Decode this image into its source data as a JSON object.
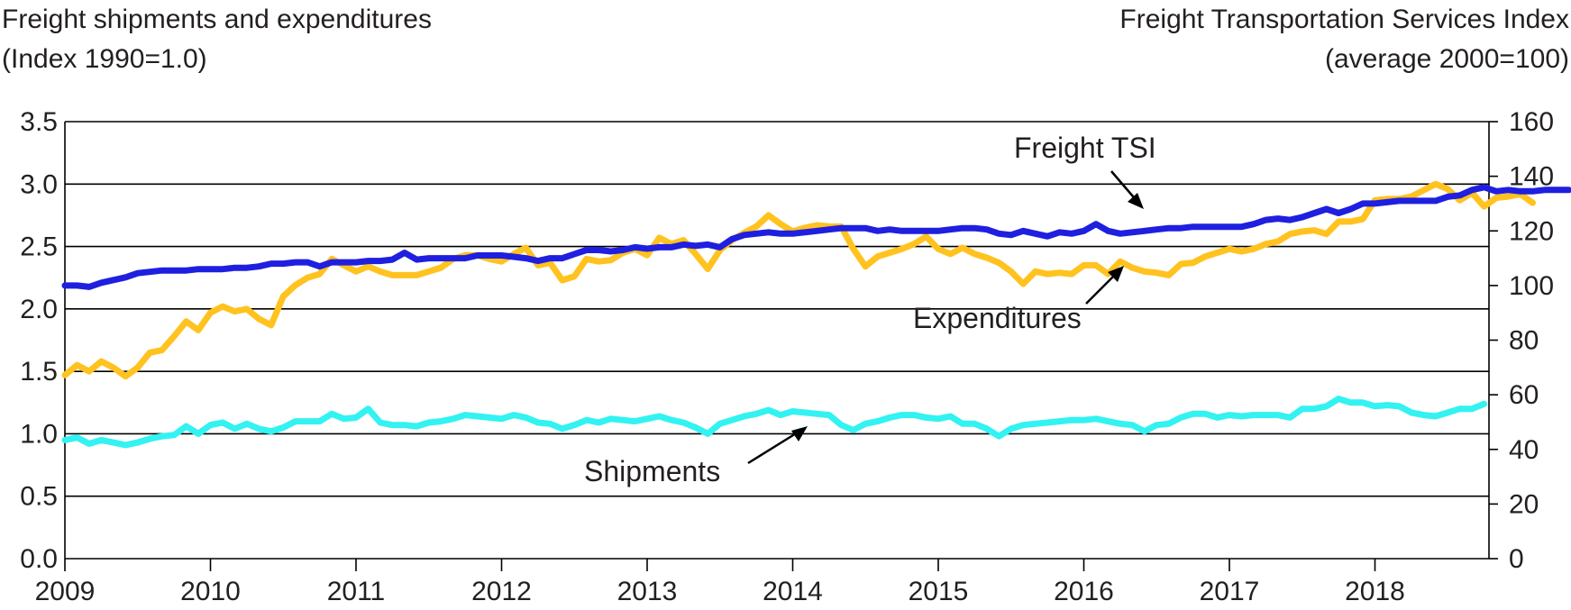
{
  "chart_data": {
    "type": "line",
    "left_axis_title": [
      "Freight shipments and expenditures",
      "(Index 1990=1.0)"
    ],
    "right_axis_title": [
      "Freight Transportation Services Index",
      "(average 2000=100)"
    ],
    "x_years": [
      "2009",
      "2010",
      "2011",
      "2012",
      "2013",
      "2014",
      "2015",
      "2016",
      "2017",
      "2018"
    ],
    "x_range": [
      2009.0,
      2018.79
    ],
    "left_ylim": [
      0,
      3.5
    ],
    "left_ticks": [
      "0.0",
      "0.5",
      "1.0",
      "1.5",
      "2.0",
      "2.5",
      "3.0",
      "3.5"
    ],
    "right_ylim": [
      0,
      160
    ],
    "right_ticks": [
      "0",
      "20",
      "40",
      "60",
      "80",
      "100",
      "120",
      "140",
      "160"
    ],
    "grid": true,
    "annotations": {
      "tsi": "Freight TSI",
      "expenditures": "Expenditures",
      "shipments": "Shipments"
    },
    "colors": {
      "tsi": "#1f1fe0",
      "expenditures": "#ffc21f",
      "shipments": "#33f2f2",
      "grid": "#000000"
    },
    "series": [
      {
        "name": "Freight TSI",
        "axis": "right",
        "color_key": "tsi",
        "start": 2009.0,
        "step": 0.0833333,
        "values": [
          100,
          100,
          99.5,
          101,
          102,
          103,
          104.5,
          105,
          105.5,
          105.5,
          105.5,
          106,
          106,
          106,
          106.5,
          106.5,
          107,
          108,
          108,
          108.5,
          108.5,
          107,
          108.5,
          108.5,
          108.5,
          109,
          109,
          109.5,
          112,
          109.5,
          110,
          110,
          110,
          110,
          111,
          111,
          111,
          110.5,
          110,
          109,
          110,
          110,
          111.5,
          113,
          113,
          112.5,
          113,
          114,
          113.5,
          114,
          114,
          115,
          114.5,
          115,
          114,
          117,
          118.5,
          119,
          119.5,
          119,
          119,
          119.5,
          120,
          120.5,
          121,
          121,
          121,
          120,
          120.5,
          120,
          120,
          120,
          120,
          120.5,
          121,
          121,
          120.5,
          119,
          118.5,
          120,
          119,
          118,
          119.5,
          119,
          120,
          122.5,
          120,
          119,
          119.5,
          120,
          120.5,
          121,
          121,
          121.5,
          121.5,
          121.5,
          121.5,
          121.5,
          122.5,
          124,
          124.5,
          124,
          125,
          126.5,
          128,
          126.5,
          128,
          130,
          130,
          130.5,
          131,
          131,
          131,
          131,
          132.5,
          133,
          135,
          136,
          134.5,
          135,
          134.5,
          134.5,
          135,
          135,
          135
        ]
      },
      {
        "name": "Expenditures",
        "axis": "left",
        "color_key": "expenditures",
        "start": 2009.0,
        "step": 0.0833333,
        "values": [
          1.47,
          1.55,
          1.5,
          1.58,
          1.53,
          1.46,
          1.53,
          1.65,
          1.67,
          1.78,
          1.9,
          1.83,
          1.97,
          2.02,
          1.98,
          2.0,
          1.92,
          1.87,
          2.1,
          2.19,
          2.25,
          2.28,
          2.4,
          2.35,
          2.3,
          2.34,
          2.3,
          2.27,
          2.27,
          2.27,
          2.3,
          2.33,
          2.4,
          2.43,
          2.43,
          2.4,
          2.38,
          2.44,
          2.49,
          2.35,
          2.37,
          2.23,
          2.26,
          2.4,
          2.38,
          2.39,
          2.45,
          2.48,
          2.43,
          2.57,
          2.52,
          2.55,
          2.44,
          2.32,
          2.47,
          2.55,
          2.61,
          2.66,
          2.75,
          2.68,
          2.62,
          2.65,
          2.67,
          2.66,
          2.66,
          2.48,
          2.34,
          2.42,
          2.45,
          2.48,
          2.52,
          2.58,
          2.48,
          2.44,
          2.49,
          2.44,
          2.41,
          2.37,
          2.3,
          2.2,
          2.3,
          2.28,
          2.29,
          2.28,
          2.35,
          2.35,
          2.28,
          2.38,
          2.33,
          2.3,
          2.29,
          2.27,
          2.36,
          2.37,
          2.42,
          2.45,
          2.48,
          2.46,
          2.48,
          2.52,
          2.54,
          2.6,
          2.62,
          2.63,
          2.6,
          2.7,
          2.7,
          2.72,
          2.87,
          2.88,
          2.88,
          2.9,
          2.95,
          3.0,
          2.96,
          2.87,
          2.93,
          2.82,
          2.89,
          2.9,
          2.92,
          2.85
        ]
      },
      {
        "name": "Shipments",
        "axis": "left",
        "color_key": "shipments",
        "start": 2009.0,
        "step": 0.0833333,
        "values": [
          0.95,
          0.97,
          0.92,
          0.95,
          0.93,
          0.91,
          0.93,
          0.96,
          0.98,
          0.99,
          1.06,
          1.0,
          1.07,
          1.09,
          1.04,
          1.08,
          1.04,
          1.02,
          1.05,
          1.1,
          1.1,
          1.1,
          1.16,
          1.12,
          1.13,
          1.2,
          1.09,
          1.07,
          1.07,
          1.06,
          1.09,
          1.1,
          1.12,
          1.15,
          1.14,
          1.13,
          1.12,
          1.15,
          1.13,
          1.09,
          1.08,
          1.04,
          1.07,
          1.11,
          1.09,
          1.12,
          1.11,
          1.1,
          1.12,
          1.14,
          1.11,
          1.09,
          1.05,
          1.0,
          1.08,
          1.11,
          1.14,
          1.16,
          1.19,
          1.15,
          1.18,
          1.17,
          1.16,
          1.15,
          1.07,
          1.03,
          1.08,
          1.1,
          1.13,
          1.15,
          1.15,
          1.13,
          1.12,
          1.14,
          1.08,
          1.08,
          1.04,
          0.98,
          1.04,
          1.07,
          1.08,
          1.09,
          1.1,
          1.11,
          1.11,
          1.12,
          1.1,
          1.08,
          1.07,
          1.02,
          1.07,
          1.08,
          1.13,
          1.16,
          1.16,
          1.13,
          1.15,
          1.14,
          1.15,
          1.15,
          1.15,
          1.13,
          1.2,
          1.2,
          1.22,
          1.28,
          1.25,
          1.25,
          1.22,
          1.23,
          1.22,
          1.17,
          1.15,
          1.14,
          1.17,
          1.2,
          1.2,
          1.24
        ]
      }
    ]
  }
}
